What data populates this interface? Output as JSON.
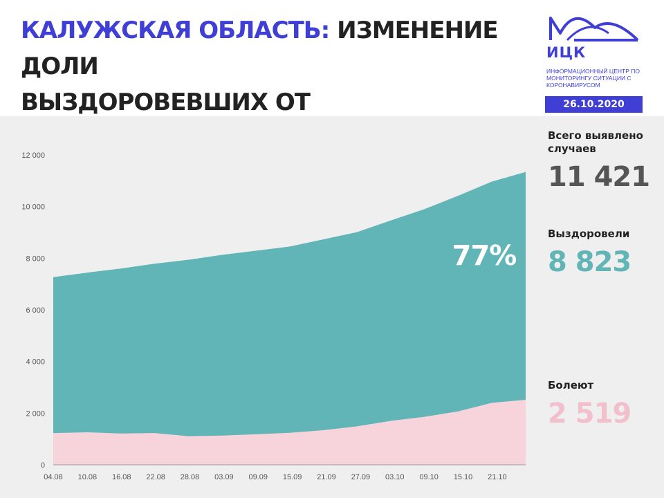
{
  "header": {
    "title_accent": "КАЛУЖСКАЯ ОБЛАСТЬ:",
    "title_line1_rest": " ИЗМЕНЕНИЕ ДОЛИ",
    "title_line2": "ВЫЗДОРОВЕВШИХ ОТ КОРОНАВИРУСА",
    "logo_name": "ИЦК",
    "logo_subtitle": "ИНФОРМАЦИОННЫЙ ЦЕНТР ПО МОНИТОРИНГУ СИТУАЦИИ С КОРОНАВИРУСОМ",
    "date": "26.10.2020"
  },
  "stats": {
    "total_label": "Всего выявлено случаев",
    "total_value": "11 421",
    "recovered_label": "Выздоровели",
    "recovered_value": "8 823",
    "recovered_percent": "77%",
    "sick_label": "Болеют",
    "sick_value": "2 519"
  },
  "colors": {
    "accent": "#3f3fd6",
    "recovered": "#62b5b6",
    "sick": "#f7d3dc",
    "sick_text": "#f2bfcc",
    "total_text": "#555555"
  },
  "chart_data": {
    "type": "area",
    "stacked": true,
    "ylim": [
      0,
      12000
    ],
    "y_ticks": [
      "0",
      "2 000",
      "4 000",
      "6 000",
      "8 000",
      "10 000",
      "12 000"
    ],
    "x_tick_labels": [
      "04.08",
      "10.08",
      "16.08",
      "22.08",
      "28.08",
      "03.09",
      "09.09",
      "15.09",
      "21.09",
      "27.09",
      "03.10",
      "09.10",
      "15.10",
      "21.10"
    ],
    "x": [
      "04.08",
      "10.08",
      "16.08",
      "22.08",
      "28.08",
      "03.09",
      "09.09",
      "15.09",
      "21.09",
      "27.09",
      "03.10",
      "09.10",
      "15.10",
      "21.10",
      "26.10"
    ],
    "series": [
      {
        "name": "Болеют",
        "values": [
          1230,
          1260,
          1210,
          1230,
          1110,
          1130,
          1180,
          1240,
          1340,
          1490,
          1700,
          1860,
          2070,
          2400,
          2519
        ]
      },
      {
        "name": "Выздоровели",
        "values": [
          6040,
          6180,
          6390,
          6560,
          6830,
          7000,
          7110,
          7210,
          7390,
          7520,
          7760,
          8040,
          8350,
          8570,
          8823
        ]
      }
    ],
    "grid": false
  }
}
